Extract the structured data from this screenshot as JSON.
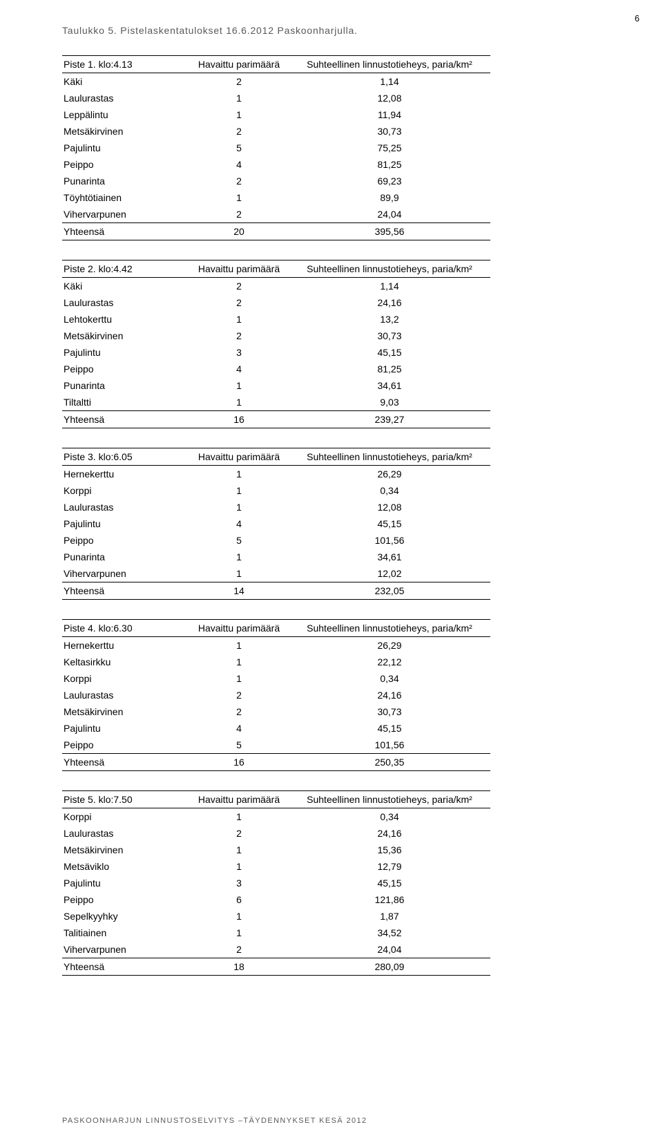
{
  "page_number": "6",
  "caption": "Taulukko 5. Pistelaskentatulokset 16.6.2012 Paskoonharjulla.",
  "footer": "PASKOONHARJUN LINNUSTOSELVITYS –TÄYDENNYKSET KESÄ 2012",
  "header_count": "Havaittu parimäärä",
  "header_density": "Suhteellinen linnustotieheys, paria/km²",
  "totals_label": "Yhteensä",
  "tables": [
    {
      "label": "Piste 1. klo:4.13",
      "rows": [
        {
          "name": "Käki",
          "count": "2",
          "density": "1,14"
        },
        {
          "name": "Laulurastas",
          "count": "1",
          "density": "12,08"
        },
        {
          "name": "Leppälintu",
          "count": "1",
          "density": "11,94"
        },
        {
          "name": "Metsäkirvinen",
          "count": "2",
          "density": "30,73"
        },
        {
          "name": "Pajulintu",
          "count": "5",
          "density": "75,25"
        },
        {
          "name": "Peippo",
          "count": "4",
          "density": "81,25"
        },
        {
          "name": "Punarinta",
          "count": "2",
          "density": "69,23"
        },
        {
          "name": "Töyhtötiainen",
          "count": "1",
          "density": "89,9"
        },
        {
          "name": "Vihervarpunen",
          "count": "2",
          "density": "24,04"
        }
      ],
      "totals": {
        "count": "20",
        "density": "395,56"
      }
    },
    {
      "label": "Piste 2. klo:4.42",
      "rows": [
        {
          "name": "Käki",
          "count": "2",
          "density": "1,14"
        },
        {
          "name": "Laulurastas",
          "count": "2",
          "density": "24,16"
        },
        {
          "name": "Lehtokerttu",
          "count": "1",
          "density": "13,2"
        },
        {
          "name": "Metsäkirvinen",
          "count": "2",
          "density": "30,73"
        },
        {
          "name": "Pajulintu",
          "count": "3",
          "density": "45,15"
        },
        {
          "name": "Peippo",
          "count": "4",
          "density": "81,25"
        },
        {
          "name": "Punarinta",
          "count": "1",
          "density": "34,61"
        },
        {
          "name": "Tiltaltti",
          "count": "1",
          "density": "9,03"
        }
      ],
      "totals": {
        "count": "16",
        "density": "239,27"
      }
    },
    {
      "label": "Piste 3. klo:6.05",
      "rows": [
        {
          "name": "Hernekerttu",
          "count": "1",
          "density": "26,29"
        },
        {
          "name": "Korppi",
          "count": "1",
          "density": "0,34"
        },
        {
          "name": "Laulurastas",
          "count": "1",
          "density": "12,08"
        },
        {
          "name": "Pajulintu",
          "count": "4",
          "density": "45,15"
        },
        {
          "name": "Peippo",
          "count": "5",
          "density": "101,56"
        },
        {
          "name": "Punarinta",
          "count": "1",
          "density": "34,61"
        },
        {
          "name": "Vihervarpunen",
          "count": "1",
          "density": "12,02"
        }
      ],
      "totals": {
        "count": "14",
        "density": "232,05"
      }
    },
    {
      "label": "Piste 4. klo:6.30",
      "rows": [
        {
          "name": "Hernekerttu",
          "count": "1",
          "density": "26,29"
        },
        {
          "name": "Keltasirkku",
          "count": "1",
          "density": "22,12"
        },
        {
          "name": "Korppi",
          "count": "1",
          "density": "0,34"
        },
        {
          "name": "Laulurastas",
          "count": "2",
          "density": "24,16"
        },
        {
          "name": "Metsäkirvinen",
          "count": "2",
          "density": "30,73"
        },
        {
          "name": "Pajulintu",
          "count": "4",
          "density": "45,15"
        },
        {
          "name": "Peippo",
          "count": "5",
          "density": "101,56"
        }
      ],
      "totals": {
        "count": "16",
        "density": "250,35"
      }
    },
    {
      "label": "Piste 5. klo:7.50",
      "rows": [
        {
          "name": "Korppi",
          "count": "1",
          "density": "0,34"
        },
        {
          "name": "Laulurastas",
          "count": "2",
          "density": "24,16"
        },
        {
          "name": "Metsäkirvinen",
          "count": "1",
          "density": "15,36"
        },
        {
          "name": "Metsäviklo",
          "count": "1",
          "density": "12,79"
        },
        {
          "name": "Pajulintu",
          "count": "3",
          "density": "45,15"
        },
        {
          "name": "Peippo",
          "count": "6",
          "density": "121,86"
        },
        {
          "name": "Sepelkyyhky",
          "count": "1",
          "density": "1,87"
        },
        {
          "name": "Talitiainen",
          "count": "1",
          "density": "34,52"
        },
        {
          "name": "Vihervarpunen",
          "count": "2",
          "density": "24,04"
        }
      ],
      "totals": {
        "count": "18",
        "density": "280,09"
      }
    }
  ]
}
